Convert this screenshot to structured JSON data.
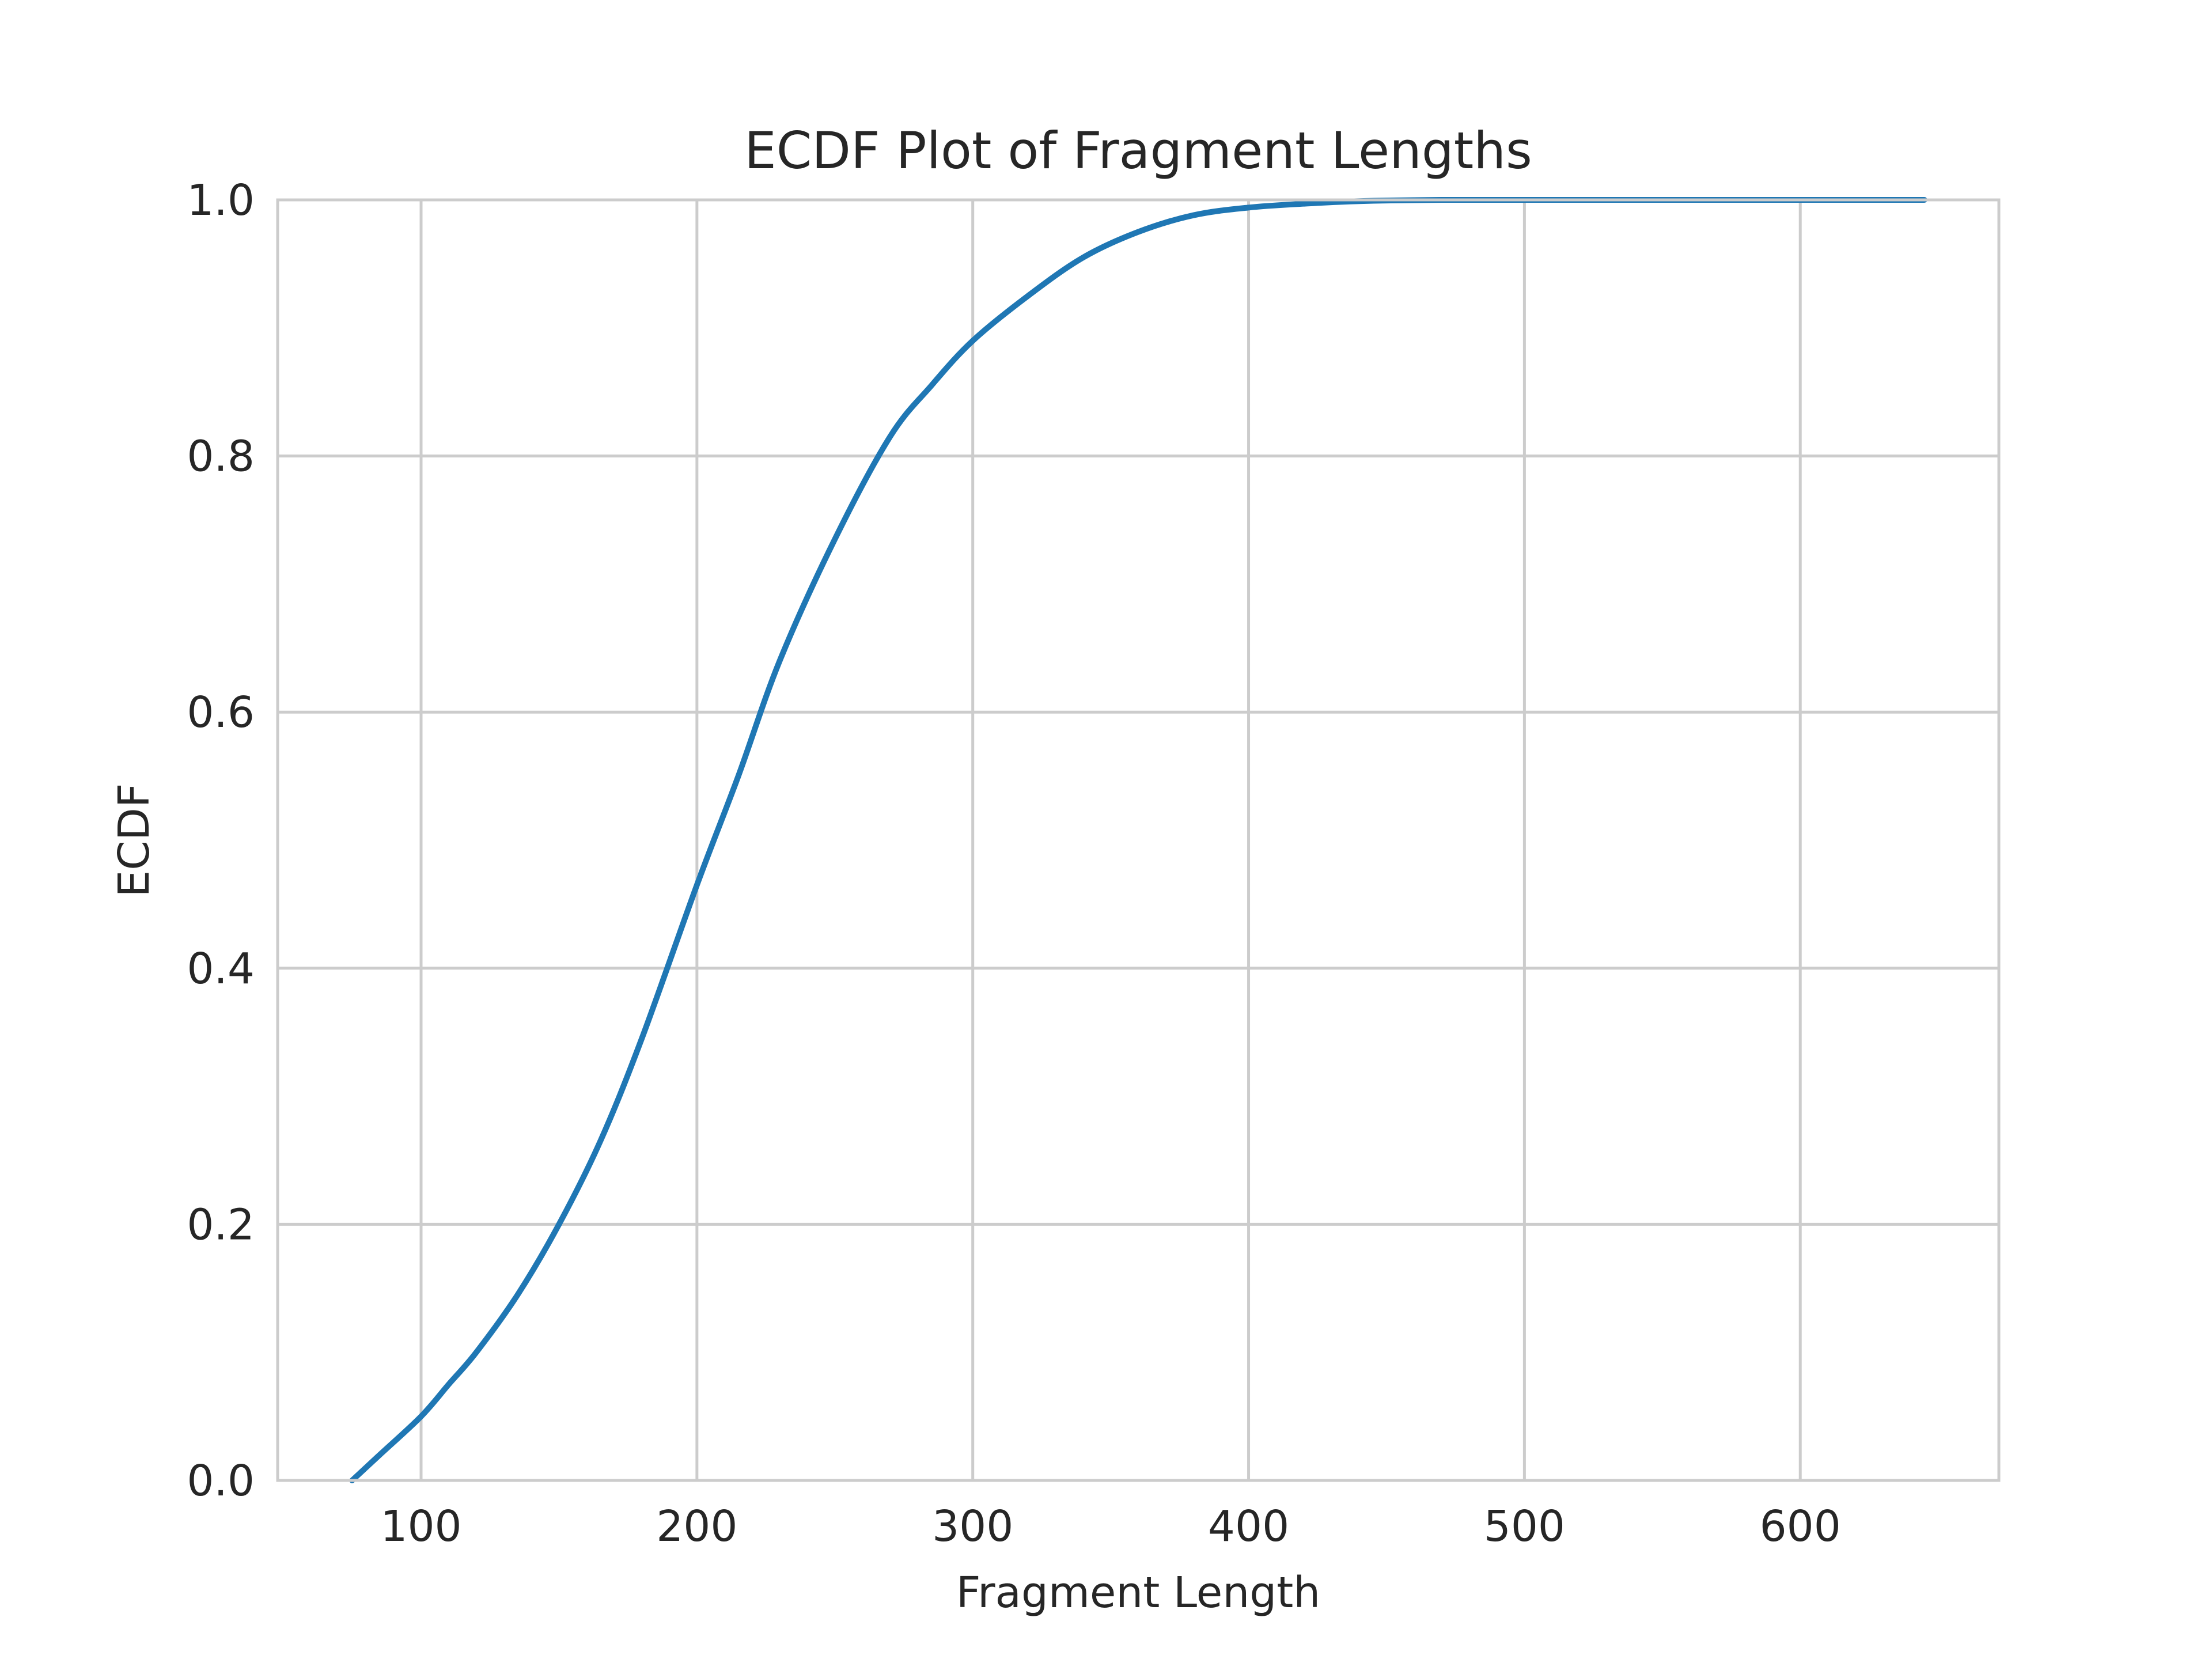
{
  "chart_data": {
    "type": "line",
    "title": "ECDF Plot of Fragment Lengths",
    "xlabel": "Fragment Length",
    "ylabel": "ECDF",
    "xlim": [
      48,
      672
    ],
    "ylim": [
      0.0,
      1.0
    ],
    "x_ticks": [
      100,
      200,
      300,
      400,
      500,
      600
    ],
    "x_tick_labels": [
      "100",
      "200",
      "300",
      "400",
      "500",
      "600"
    ],
    "y_ticks": [
      0.0,
      0.2,
      0.4,
      0.6,
      0.8,
      1.0
    ],
    "y_tick_labels": [
      "0.0",
      "0.2",
      "0.4",
      "0.6",
      "0.8",
      "1.0"
    ],
    "grid": true,
    "legend": "none",
    "colors": {
      "series": "#1f77b4",
      "grid": "#cccccc",
      "text": "#262626"
    },
    "series": [
      {
        "name": "ECDF",
        "x": [
          75,
          85,
          100,
          110,
          120,
          135,
          150,
          165,
          180,
          200,
          215,
          230,
          250,
          270,
          285,
          300,
          320,
          340,
          360,
          380,
          400,
          420,
          440,
          470,
          500,
          550,
          600,
          645
        ],
        "y": [
          0.0,
          0.02,
          0.05,
          0.075,
          0.1,
          0.145,
          0.2,
          0.265,
          0.345,
          0.465,
          0.55,
          0.64,
          0.735,
          0.815,
          0.855,
          0.89,
          0.925,
          0.955,
          0.975,
          0.988,
          0.994,
          0.997,
          0.999,
          1.0,
          1.0,
          1.0,
          1.0,
          1.0
        ]
      }
    ]
  }
}
